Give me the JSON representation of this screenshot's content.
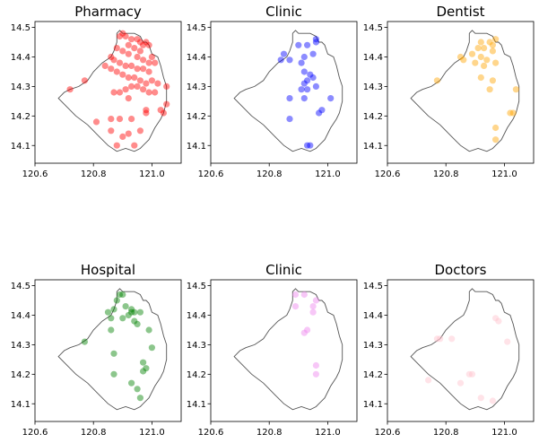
{
  "chart_data": [
    {
      "type": "scatter",
      "title": "Pharmacy",
      "color": "#ff0000",
      "xlim": [
        120.6,
        121.1
      ],
      "ylim": [
        14.04,
        14.52
      ],
      "xticks": [
        "120.6",
        "120.8",
        "121.0"
      ],
      "yticks": [
        "14.1",
        "14.2",
        "14.3",
        "14.4",
        "14.5"
      ],
      "points": [
        [
          120.89,
          14.47
        ],
        [
          120.9,
          14.48
        ],
        [
          120.91,
          14.47
        ],
        [
          120.93,
          14.46
        ],
        [
          120.95,
          14.46
        ],
        [
          120.96,
          14.45
        ],
        [
          120.97,
          14.44
        ],
        [
          120.98,
          14.45
        ],
        [
          120.99,
          14.44
        ],
        [
          120.92,
          14.44
        ],
        [
          120.94,
          14.43
        ],
        [
          120.96,
          14.42
        ],
        [
          120.9,
          14.42
        ],
        [
          120.88,
          14.43
        ],
        [
          120.92,
          14.41
        ],
        [
          120.95,
          14.4
        ],
        [
          120.97,
          14.39
        ],
        [
          120.99,
          14.38
        ],
        [
          121.0,
          14.4
        ],
        [
          121.01,
          14.38
        ],
        [
          120.86,
          14.4
        ],
        [
          120.87,
          14.39
        ],
        [
          120.89,
          14.38
        ],
        [
          120.91,
          14.37
        ],
        [
          120.93,
          14.37
        ],
        [
          120.95,
          14.36
        ],
        [
          120.97,
          14.36
        ],
        [
          120.99,
          14.35
        ],
        [
          120.88,
          14.35
        ],
        [
          120.9,
          14.34
        ],
        [
          120.92,
          14.33
        ],
        [
          120.94,
          14.33
        ],
        [
          120.96,
          14.32
        ],
        [
          120.98,
          14.31
        ],
        [
          121.0,
          14.32
        ],
        [
          121.02,
          14.31
        ],
        [
          120.93,
          14.3
        ],
        [
          120.95,
          14.3
        ],
        [
          120.97,
          14.29
        ],
        [
          120.91,
          14.29
        ],
        [
          120.89,
          14.28
        ],
        [
          120.87,
          14.28
        ],
        [
          120.99,
          14.28
        ],
        [
          121.01,
          14.28
        ],
        [
          121.05,
          14.3
        ],
        [
          120.72,
          14.29
        ],
        [
          120.77,
          14.32
        ],
        [
          120.84,
          14.37
        ],
        [
          120.86,
          14.36
        ],
        [
          120.92,
          14.26
        ],
        [
          120.98,
          14.22
        ],
        [
          120.98,
          14.21
        ],
        [
          121.03,
          14.22
        ],
        [
          121.04,
          14.21
        ],
        [
          121.05,
          14.24
        ],
        [
          120.81,
          14.18
        ],
        [
          120.86,
          14.19
        ],
        [
          120.89,
          14.19
        ],
        [
          120.93,
          14.19
        ],
        [
          120.86,
          14.15
        ],
        [
          120.9,
          14.13
        ],
        [
          120.92,
          14.14
        ],
        [
          120.96,
          14.15
        ],
        [
          120.88,
          14.1
        ],
        [
          120.94,
          14.1
        ]
      ]
    },
    {
      "type": "scatter",
      "title": "Clinic",
      "color": "#0000ff",
      "xlim": [
        120.6,
        121.1
      ],
      "ylim": [
        14.04,
        14.52
      ],
      "xticks": [
        "120.6",
        "120.8",
        "121.0"
      ],
      "yticks": [
        "14.1",
        "14.2",
        "14.3",
        "14.4",
        "14.5"
      ],
      "points": [
        [
          120.96,
          14.46
        ],
        [
          120.96,
          14.45
        ],
        [
          120.9,
          14.44
        ],
        [
          120.93,
          14.44
        ],
        [
          120.85,
          14.41
        ],
        [
          120.84,
          14.39
        ],
        [
          120.87,
          14.39
        ],
        [
          120.91,
          14.38
        ],
        [
          120.92,
          14.4
        ],
        [
          120.95,
          14.41
        ],
        [
          120.92,
          14.35
        ],
        [
          120.94,
          14.34
        ],
        [
          120.95,
          14.33
        ],
        [
          120.93,
          14.32
        ],
        [
          120.92,
          14.31
        ],
        [
          120.96,
          14.3
        ],
        [
          120.91,
          14.29
        ],
        [
          120.93,
          14.29
        ],
        [
          120.92,
          14.26
        ],
        [
          120.87,
          14.26
        ],
        [
          121.01,
          14.26
        ],
        [
          120.98,
          14.22
        ],
        [
          120.97,
          14.21
        ],
        [
          120.87,
          14.19
        ],
        [
          120.93,
          14.1
        ],
        [
          120.94,
          14.1
        ]
      ]
    },
    {
      "type": "scatter",
      "title": "Dentist",
      "color": "#ffa500",
      "xlim": [
        120.6,
        121.1
      ],
      "ylim": [
        14.04,
        14.52
      ],
      "xticks": [
        "120.6",
        "120.8",
        "121.0"
      ],
      "yticks": [
        "14.1",
        "14.2",
        "14.3",
        "14.4",
        "14.5"
      ],
      "points": [
        [
          120.92,
          14.45
        ],
        [
          120.95,
          14.45
        ],
        [
          120.96,
          14.44
        ],
        [
          120.97,
          14.46
        ],
        [
          120.91,
          14.43
        ],
        [
          120.93,
          14.43
        ],
        [
          120.96,
          14.42
        ],
        [
          120.89,
          14.41
        ],
        [
          120.92,
          14.4
        ],
        [
          120.85,
          14.4
        ],
        [
          120.86,
          14.39
        ],
        [
          120.9,
          14.38
        ],
        [
          120.94,
          14.39
        ],
        [
          120.97,
          14.38
        ],
        [
          120.93,
          14.37
        ],
        [
          120.92,
          14.33
        ],
        [
          120.96,
          14.32
        ],
        [
          120.95,
          14.29
        ],
        [
          121.04,
          14.29
        ],
        [
          120.77,
          14.32
        ],
        [
          121.02,
          14.21
        ],
        [
          121.03,
          14.21
        ],
        [
          120.97,
          14.16
        ],
        [
          120.97,
          14.12
        ]
      ]
    },
    {
      "type": "scatter",
      "title": "Hospital",
      "color": "#008000",
      "xlim": [
        120.6,
        121.1
      ],
      "ylim": [
        14.04,
        14.52
      ],
      "xticks": [
        "120.6",
        "120.8",
        "121.0"
      ],
      "yticks": [
        "14.1",
        "14.2",
        "14.3",
        "14.4",
        "14.5"
      ],
      "points": [
        [
          120.89,
          14.47
        ],
        [
          120.9,
          14.47
        ],
        [
          120.88,
          14.45
        ],
        [
          120.91,
          14.43
        ],
        [
          120.87,
          14.42
        ],
        [
          120.93,
          14.42
        ],
        [
          120.94,
          14.41
        ],
        [
          120.96,
          14.41
        ],
        [
          120.85,
          14.41
        ],
        [
          120.86,
          14.39
        ],
        [
          120.9,
          14.39
        ],
        [
          120.92,
          14.4
        ],
        [
          120.93,
          14.41
        ],
        [
          120.94,
          14.38
        ],
        [
          120.95,
          14.37
        ],
        [
          120.99,
          14.35
        ],
        [
          120.86,
          14.35
        ],
        [
          120.77,
          14.31
        ],
        [
          121.0,
          14.29
        ],
        [
          120.87,
          14.27
        ],
        [
          120.97,
          14.24
        ],
        [
          120.98,
          14.22
        ],
        [
          120.97,
          14.21
        ],
        [
          120.87,
          14.2
        ],
        [
          120.93,
          14.17
        ],
        [
          120.95,
          14.15
        ],
        [
          120.96,
          14.12
        ]
      ]
    },
    {
      "type": "scatter",
      "title": "Clinic",
      "color": "#ee82ee",
      "xlim": [
        120.6,
        121.1
      ],
      "ylim": [
        14.04,
        14.52
      ],
      "xticks": [
        "120.6",
        "120.8",
        "121.0"
      ],
      "yticks": [
        "14.1",
        "14.2",
        "14.3",
        "14.4",
        "14.5"
      ],
      "points": [
        [
          120.89,
          14.47
        ],
        [
          120.92,
          14.47
        ],
        [
          120.96,
          14.45
        ],
        [
          120.89,
          14.43
        ],
        [
          120.95,
          14.43
        ],
        [
          120.95,
          14.41
        ],
        [
          120.93,
          14.35
        ],
        [
          120.92,
          14.34
        ],
        [
          120.96,
          14.23
        ],
        [
          120.96,
          14.2
        ]
      ]
    },
    {
      "type": "scatter",
      "title": "Doctors",
      "color": "#ffc0cb",
      "xlim": [
        120.6,
        121.1
      ],
      "ylim": [
        14.04,
        14.52
      ],
      "xticks": [
        "120.6",
        "120.8",
        "121.0"
      ],
      "yticks": [
        "14.1",
        "14.2",
        "14.3",
        "14.4",
        "14.5"
      ],
      "points": [
        [
          120.97,
          14.39
        ],
        [
          120.98,
          14.38
        ],
        [
          120.77,
          14.32
        ],
        [
          120.78,
          14.32
        ],
        [
          120.82,
          14.32
        ],
        [
          121.01,
          14.31
        ],
        [
          120.74,
          14.18
        ],
        [
          120.85,
          14.17
        ],
        [
          120.88,
          14.2
        ],
        [
          120.89,
          14.2
        ],
        [
          120.92,
          14.12
        ],
        [
          120.96,
          14.11
        ]
      ]
    }
  ],
  "boundary_outline": [
    [
      120.88,
      14.48
    ],
    [
      120.89,
      14.49
    ],
    [
      120.9,
      14.48
    ],
    [
      120.92,
      14.48
    ],
    [
      120.94,
      14.48
    ],
    [
      120.96,
      14.47
    ],
    [
      120.97,
      14.45
    ],
    [
      120.98,
      14.45
    ],
    [
      120.99,
      14.44
    ],
    [
      121.0,
      14.41
    ],
    [
      121.02,
      14.4
    ],
    [
      121.03,
      14.37
    ],
    [
      121.04,
      14.33
    ],
    [
      121.05,
      14.3
    ],
    [
      121.05,
      14.25
    ],
    [
      121.04,
      14.21
    ],
    [
      121.03,
      14.19
    ],
    [
      121.01,
      14.16
    ],
    [
      120.99,
      14.12
    ],
    [
      120.97,
      14.1
    ],
    [
      120.96,
      14.09
    ],
    [
      120.94,
      14.08
    ],
    [
      120.91,
      14.09
    ],
    [
      120.88,
      14.08
    ],
    [
      120.85,
      14.1
    ],
    [
      120.82,
      14.13
    ],
    [
      120.8,
      14.15
    ],
    [
      120.78,
      14.17
    ],
    [
      120.74,
      14.2
    ],
    [
      120.7,
      14.24
    ],
    [
      120.68,
      14.26
    ],
    [
      120.7,
      14.28
    ],
    [
      120.72,
      14.29
    ],
    [
      120.75,
      14.3
    ],
    [
      120.78,
      14.32
    ],
    [
      120.8,
      14.35
    ],
    [
      120.83,
      14.38
    ],
    [
      120.86,
      14.4
    ],
    [
      120.87,
      14.42
    ],
    [
      120.88,
      14.45
    ],
    [
      120.88,
      14.48
    ]
  ]
}
